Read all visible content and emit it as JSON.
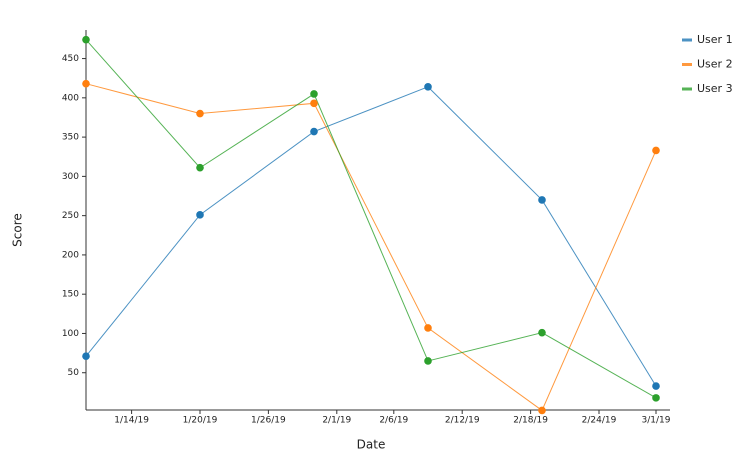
{
  "chart_data": {
    "type": "line",
    "x_label": "Date",
    "y_label": "Score",
    "x": [
      "1/10/19",
      "1/20/19",
      "1/30/19",
      "2/9/19",
      "2/19/19",
      "3/1/19"
    ],
    "series": [
      {
        "name": "User 1",
        "color": "#1f77b4",
        "values": [
          71,
          251,
          357,
          414,
          270,
          33
        ]
      },
      {
        "name": "User 2",
        "color": "#ff7f0e",
        "values": [
          418,
          380,
          393,
          107,
          2,
          333
        ]
      },
      {
        "name": "User 3",
        "color": "#2ca02c",
        "values": [
          474,
          311,
          405,
          65,
          101,
          18
        ]
      }
    ],
    "xlim": [
      "1/10/19",
      "3/1/19"
    ],
    "xticks": [
      "1/14/19",
      "1/20/19",
      "1/26/19",
      "2/1/19",
      "2/6/19",
      "2/12/19",
      "2/18/19",
      "2/24/19",
      "3/1/19"
    ],
    "ylim": [
      0,
      480
    ],
    "yticks": [
      50,
      100,
      150,
      200,
      250,
      300,
      350,
      400,
      450
    ],
    "legend": "top-right"
  }
}
